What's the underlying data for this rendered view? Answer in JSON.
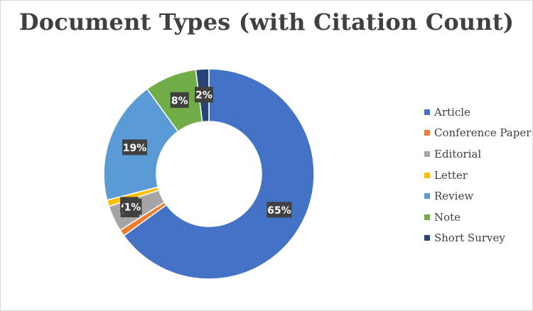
{
  "chart_data": {
    "type": "donut",
    "title": "Document Types (with Citation Count)",
    "categories": [
      "Article",
      "Conference Paper",
      "Editorial",
      "Letter",
      "Review",
      "Note",
      "Short Survey"
    ],
    "values": [
      65,
      1,
      4,
      1,
      19,
      8,
      2
    ],
    "labels": [
      "65%",
      "1%",
      "4%",
      "1%",
      "19%",
      "8%",
      "2%"
    ],
    "colors": [
      "#4472c4",
      "#ed7d31",
      "#a5a5a5",
      "#ffc000",
      "#5b9bd5",
      "#70ad47",
      "#264478"
    ],
    "legend_position": "right"
  }
}
